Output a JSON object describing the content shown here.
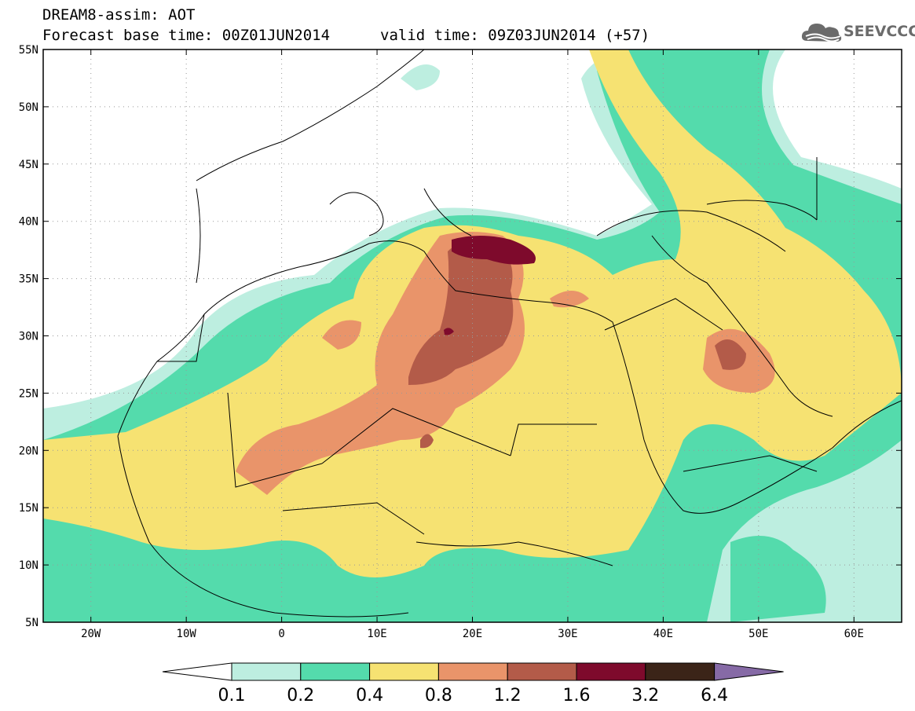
{
  "title_line1": "DREAM8-assim: AOT",
  "title_line2": "Forecast base time: 00Z01JUN2014",
  "valid_time": "valid time: 09Z03JUN2014 (+57)",
  "logo_text": "SEEVCCC",
  "lat_labels": [
    "55N",
    "50N",
    "45N",
    "40N",
    "35N",
    "30N",
    "25N",
    "20N",
    "15N",
    "10N",
    "5N"
  ],
  "lon_labels": [
    "20W",
    "10W",
    "0",
    "10E",
    "20E",
    "30E",
    "40E",
    "50E",
    "60E"
  ],
  "colorbar": {
    "levels": [
      "0.1",
      "0.2",
      "0.4",
      "0.8",
      "1.2",
      "1.6",
      "3.2",
      "6.4"
    ],
    "colors": [
      "#ffffff",
      "#bdeee0",
      "#54dbac",
      "#f6e272",
      "#e9946a",
      "#b35b49",
      "#7e0a2c",
      "#3b2418",
      "#866aa6"
    ]
  },
  "map_extent": {
    "lon": [
      -25,
      65
    ],
    "lat": [
      5,
      55
    ]
  }
}
